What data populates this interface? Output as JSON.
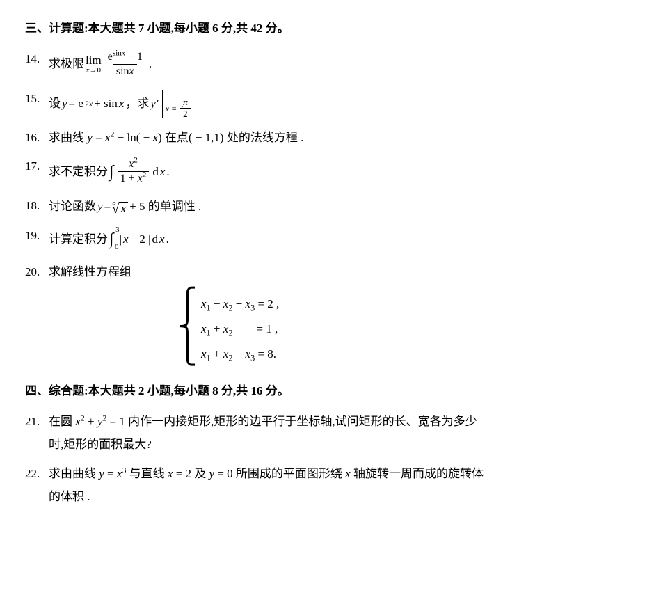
{
  "section3": {
    "heading": "三、计算题:本大题共 7 小题,每小题 6 分,共 42 分。",
    "q14": {
      "num": "14.",
      "t1": "求极限",
      "lim_top": "lim",
      "lim_bot_l": "x",
      "lim_bot_arrow": "→0",
      "frac_num_e": "e",
      "frac_num_exp": "sin",
      "frac_num_exp_x": "x",
      "frac_num_minus": " − 1",
      "frac_den_sin": "sin",
      "frac_den_x": "x",
      "period": " ."
    },
    "q15": {
      "num": "15.",
      "t1": "设 ",
      "y": "y",
      "eq": " = e",
      "exp2x_2": "2",
      "exp2x_x": "x",
      "plus_sin": " + sin",
      "x": "x",
      "comma_qiu": "，求 ",
      "yprime": "y′",
      "bar_sub_xeq": "x = ",
      "bar_sub_pi": "π",
      "bar_sub_2": "2",
      "period": " ."
    },
    "q16": {
      "num": "16.",
      "t1": "求曲线 ",
      "y": "y",
      "eq": " = ",
      "x": "x",
      "sq": "2",
      "minus_ln": " − ln( − ",
      "x2": "x",
      "close": ") 在点( − 1,1) 处的法线方程 ."
    },
    "q17": {
      "num": "17.",
      "t1": "求不定积分",
      "int": "∫",
      "num_x": "x",
      "num_sq": "2",
      "den_1plus": "1 + ",
      "den_x": "x",
      "den_sq": "2",
      "dx_d": "d",
      "dx_x": "x",
      "period": " ."
    },
    "q18": {
      "num": "18.",
      "t1": "讨论函数 ",
      "y": "y",
      "eq": " = ",
      "root_idx": "5",
      "surd": "√",
      "radicand": "x",
      "plus5": " + 5 的单调性 ."
    },
    "q19": {
      "num": "19.",
      "t1": "计算定积分",
      "int": "∫",
      "up": "3",
      "low": "0",
      "bar1": " |",
      "x": "x",
      "minus2": " − 2 |",
      "dx_d": "d",
      "dx_x": "x",
      "period": " ."
    },
    "q20": {
      "num": "20.",
      "t1": "求解线性方程组",
      "row1": {
        "x1": "x",
        "s1": "1",
        "m": " − ",
        "x2": "x",
        "s2": "2",
        "p": " + ",
        "x3": "x",
        "s3": "3",
        "eq": " = 2 ,"
      },
      "row2": {
        "x1": "x",
        "s1": "1",
        "p": " + ",
        "x2": "x",
        "s2": "2",
        "eq": "        = 1 ,"
      },
      "row3": {
        "x1": "x",
        "s1": "1",
        "p1": " + ",
        "x2": "x",
        "s2": "2",
        "p2": " + ",
        "x3": "x",
        "s3": "3",
        "eq": " = 8."
      }
    }
  },
  "section4": {
    "heading": "四、综合题:本大题共 2 小题,每小题 8 分,共 16 分。",
    "q21": {
      "num": "21.",
      "line1_a": "在圆 ",
      "x": "x",
      "sq1": "2",
      "plus": " + ",
      "y": "y",
      "sq2": "2",
      "line1_b": " = 1 内作一内接矩形,矩形的边平行于坐标轴,试问矩形的长、宽各为多少",
      "line2": "时,矩形的面积最大?"
    },
    "q22": {
      "num": "22.",
      "line1_a": "求由曲线 ",
      "y": "y",
      "eq": " = ",
      "x": "x",
      "cube": "3",
      "line1_b": " 与直线 ",
      "x2": "x",
      "eq2": " = 2 及 ",
      "y2": "y",
      "line1_c": " = 0 所围成的平面图形绕 ",
      "x3": "x",
      "line1_d": " 轴旋转一周而成的旋转体",
      "line2": "的体积 ."
    }
  }
}
